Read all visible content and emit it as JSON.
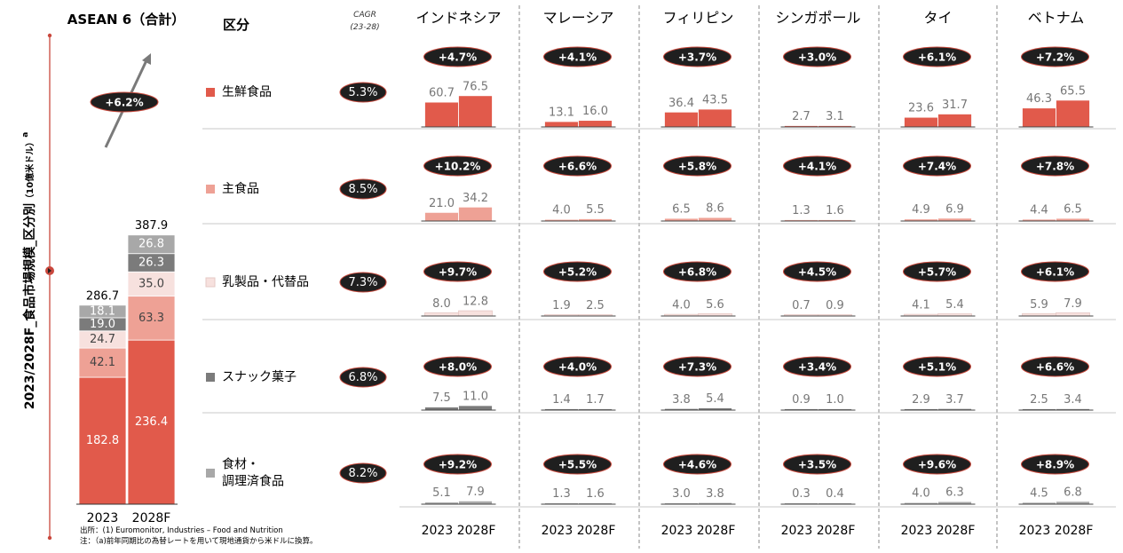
{
  "chart_data": {
    "type": "bar",
    "y_axis_title": "2023/2028F_食品市場規模_区分別",
    "y_axis_unit": "（10億米ドル）",
    "y_axis_superscript": "a",
    "aggregate": {
      "title": "ASEAN 6（合計）",
      "categories": [
        "2023",
        "2028F"
      ],
      "totals": [
        "286.7",
        "387.9"
      ],
      "cagr_label": "+6.2%",
      "series": [
        {
          "name": "生鮮食品",
          "values": [
            182.8,
            236.4
          ],
          "color": "#e15a4b",
          "labels": [
            "182.8",
            "236.4"
          ]
        },
        {
          "name": "主食品",
          "values": [
            42.1,
            63.3
          ],
          "color": "#eea195",
          "labels": [
            "42.1",
            "63.3"
          ]
        },
        {
          "name": "乳製品・代替品",
          "values": [
            24.7,
            35.0
          ],
          "color": "#f7e1de",
          "labels": [
            "24.7",
            "35.0"
          ]
        },
        {
          "name": "スナック菓子",
          "values": [
            19.0,
            26.3
          ],
          "color": "#7b7b7b",
          "labels": [
            "19.0",
            "26.3"
          ]
        },
        {
          "name": "食材・調理済食品",
          "values": [
            18.1,
            26.8
          ],
          "color": "#a8a8a8",
          "labels": [
            "18.1",
            "26.8"
          ]
        }
      ]
    },
    "category_header": "区分",
    "cagr_header": [
      "CAGR",
      "(23-28)"
    ],
    "segments": [
      {
        "name_lines": [
          "生鮮食品"
        ],
        "cagr": "5.3%",
        "color": "#e15a4b"
      },
      {
        "name_lines": [
          "主食品"
        ],
        "cagr": "8.5%",
        "color": "#eea195"
      },
      {
        "name_lines": [
          "乳製品・代替品"
        ],
        "cagr": "7.3%",
        "color": "#f7e1de"
      },
      {
        "name_lines": [
          "スナック菓子"
        ],
        "cagr": "6.8%",
        "color": "#7b7b7b"
      },
      {
        "name_lines": [
          "食材・",
          "調理済食品"
        ],
        "cagr": "8.2%",
        "color": "#a8a8a8"
      }
    ],
    "countries": [
      {
        "name": "インドネシア",
        "values": [
          [
            60.7,
            76.5
          ],
          [
            21.0,
            34.2
          ],
          [
            8.0,
            12.8
          ],
          [
            7.5,
            11.0
          ],
          [
            5.1,
            7.9
          ]
        ],
        "labels": [
          [
            "60.7",
            "76.5"
          ],
          [
            "21.0",
            "34.2"
          ],
          [
            "8.0",
            "12.8"
          ],
          [
            "7.5",
            "11.0"
          ],
          [
            "5.1",
            "7.9"
          ]
        ],
        "cagr": [
          "+4.7%",
          "+10.2%",
          "+9.7%",
          "+8.0%",
          "+9.2%"
        ]
      },
      {
        "name": "マレーシア",
        "values": [
          [
            13.1,
            16.0
          ],
          [
            4.0,
            5.5
          ],
          [
            1.9,
            2.5
          ],
          [
            1.4,
            1.7
          ],
          [
            1.3,
            1.6
          ]
        ],
        "labels": [
          [
            "13.1",
            "16.0"
          ],
          [
            "4.0",
            "5.5"
          ],
          [
            "1.9",
            "2.5"
          ],
          [
            "1.4",
            "1.7"
          ],
          [
            "1.3",
            "1.6"
          ]
        ],
        "cagr": [
          "+4.1%",
          "+6.6%",
          "+5.2%",
          "+4.0%",
          "+5.5%"
        ]
      },
      {
        "name": "フィリピン",
        "values": [
          [
            36.4,
            43.5
          ],
          [
            6.5,
            8.6
          ],
          [
            4.0,
            5.6
          ],
          [
            3.8,
            5.4
          ],
          [
            3.0,
            3.8
          ]
        ],
        "labels": [
          [
            "36.4",
            "43.5"
          ],
          [
            "6.5",
            "8.6"
          ],
          [
            "4.0",
            "5.6"
          ],
          [
            "3.8",
            "5.4"
          ],
          [
            "3.0",
            "3.8"
          ]
        ],
        "cagr": [
          "+3.7%",
          "+5.8%",
          "+6.8%",
          "+7.3%",
          "+4.6%"
        ]
      },
      {
        "name": "シンガポール",
        "values": [
          [
            2.7,
            3.1
          ],
          [
            1.3,
            1.6
          ],
          [
            0.7,
            0.9
          ],
          [
            0.9,
            1.0
          ],
          [
            0.3,
            0.4
          ]
        ],
        "labels": [
          [
            "2.7",
            "3.1"
          ],
          [
            "1.3",
            "1.6"
          ],
          [
            "0.7",
            "0.9"
          ],
          [
            "0.9",
            "1.0"
          ],
          [
            "0.3",
            "0.4"
          ]
        ],
        "cagr": [
          "+3.0%",
          "+4.1%",
          "+4.5%",
          "+3.4%",
          "+3.5%"
        ]
      },
      {
        "name": "タイ",
        "values": [
          [
            23.6,
            31.7
          ],
          [
            4.9,
            6.9
          ],
          [
            4.1,
            5.4
          ],
          [
            2.9,
            3.7
          ],
          [
            4.0,
            6.3
          ]
        ],
        "labels": [
          [
            "23.6",
            "31.7"
          ],
          [
            "4.9",
            "6.9"
          ],
          [
            "4.1",
            "5.4"
          ],
          [
            "2.9",
            "3.7"
          ],
          [
            "4.0",
            "6.3"
          ]
        ],
        "cagr": [
          "+6.1%",
          "+7.4%",
          "+5.7%",
          "+5.1%",
          "+9.6%"
        ]
      },
      {
        "name": "ベトナム",
        "values": [
          [
            46.3,
            65.5
          ],
          [
            4.4,
            6.5
          ],
          [
            5.9,
            7.9
          ],
          [
            2.5,
            3.4
          ],
          [
            4.5,
            6.8
          ]
        ],
        "labels": [
          [
            "46.3",
            "65.5"
          ],
          [
            "4.4",
            "6.5"
          ],
          [
            "5.9",
            "7.9"
          ],
          [
            "2.5",
            "3.4"
          ],
          [
            "4.5",
            "6.8"
          ]
        ],
        "cagr": [
          "+7.2%",
          "+7.8%",
          "+6.1%",
          "+6.6%",
          "+8.9%"
        ]
      }
    ],
    "year_pair_label": "2023 2028F",
    "source_note": "出所：(1) Euromonitor, Industries – Food and Nutrition",
    "footnote": "注：（a)前年同期比の為替レートを用いて現地通貨から米ドルに換算。"
  }
}
